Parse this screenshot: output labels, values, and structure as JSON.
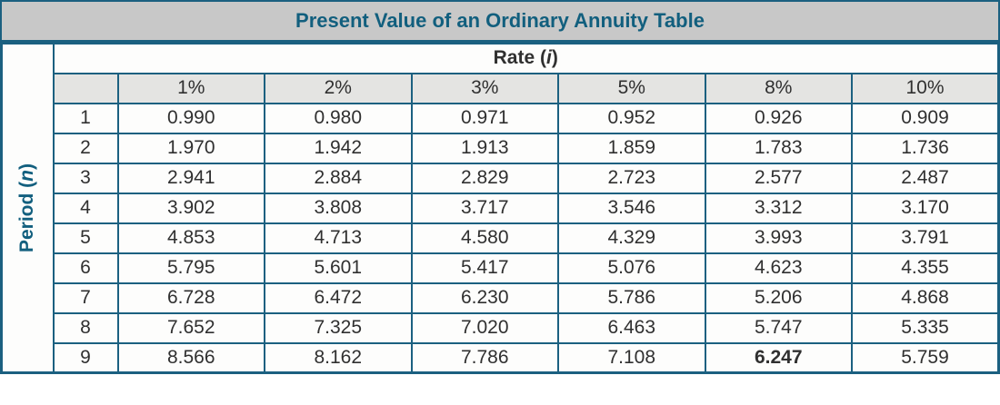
{
  "title": "Present Value of an Ordinary Annuity Table",
  "labels": {
    "rate": {
      "prefix": "Rate (",
      "var": "i",
      "suffix": ")"
    },
    "period": {
      "prefix": "Period (",
      "var": "n",
      "suffix": ")"
    }
  },
  "table": {
    "columns": [
      "1%",
      "2%",
      "3%",
      "5%",
      "8%",
      "10%"
    ],
    "rows": [
      {
        "period": "1",
        "values": [
          "0.990",
          "0.980",
          "0.971",
          "0.952",
          "0.926",
          "0.909"
        ]
      },
      {
        "period": "2",
        "values": [
          "1.970",
          "1.942",
          "1.913",
          "1.859",
          "1.783",
          "1.736"
        ]
      },
      {
        "period": "3",
        "values": [
          "2.941",
          "2.884",
          "2.829",
          "2.723",
          "2.577",
          "2.487"
        ]
      },
      {
        "period": "4",
        "values": [
          "3.902",
          "3.808",
          "3.717",
          "3.546",
          "3.312",
          "3.170"
        ]
      },
      {
        "period": "5",
        "values": [
          "4.853",
          "4.713",
          "4.580",
          "4.329",
          "3.993",
          "3.791"
        ]
      },
      {
        "period": "6",
        "values": [
          "5.795",
          "5.601",
          "5.417",
          "5.076",
          "4.623",
          "4.355"
        ]
      },
      {
        "period": "7",
        "values": [
          "6.728",
          "6.472",
          "6.230",
          "5.786",
          "5.206",
          "4.868"
        ]
      },
      {
        "period": "8",
        "values": [
          "7.652",
          "7.325",
          "7.020",
          "6.463",
          "5.747",
          "5.335"
        ]
      },
      {
        "period": "9",
        "values": [
          "8.566",
          "8.162",
          "7.786",
          "7.108",
          "6.247",
          "5.759"
        ]
      }
    ],
    "highlight": {
      "period": "9",
      "column": "8%",
      "row_index": 8,
      "col_index": 4,
      "value": "6.247"
    }
  },
  "colors": {
    "border": "#1b6080",
    "title_bg": "#c8c8c8",
    "header_bg": "#e4e4e2",
    "cell_bg": "#fdfdfc",
    "highlight_bg": "#cfe9f8",
    "heading_text": "#125f7e",
    "data_text": "#303030",
    "highlight_text": "#1f2a38"
  }
}
